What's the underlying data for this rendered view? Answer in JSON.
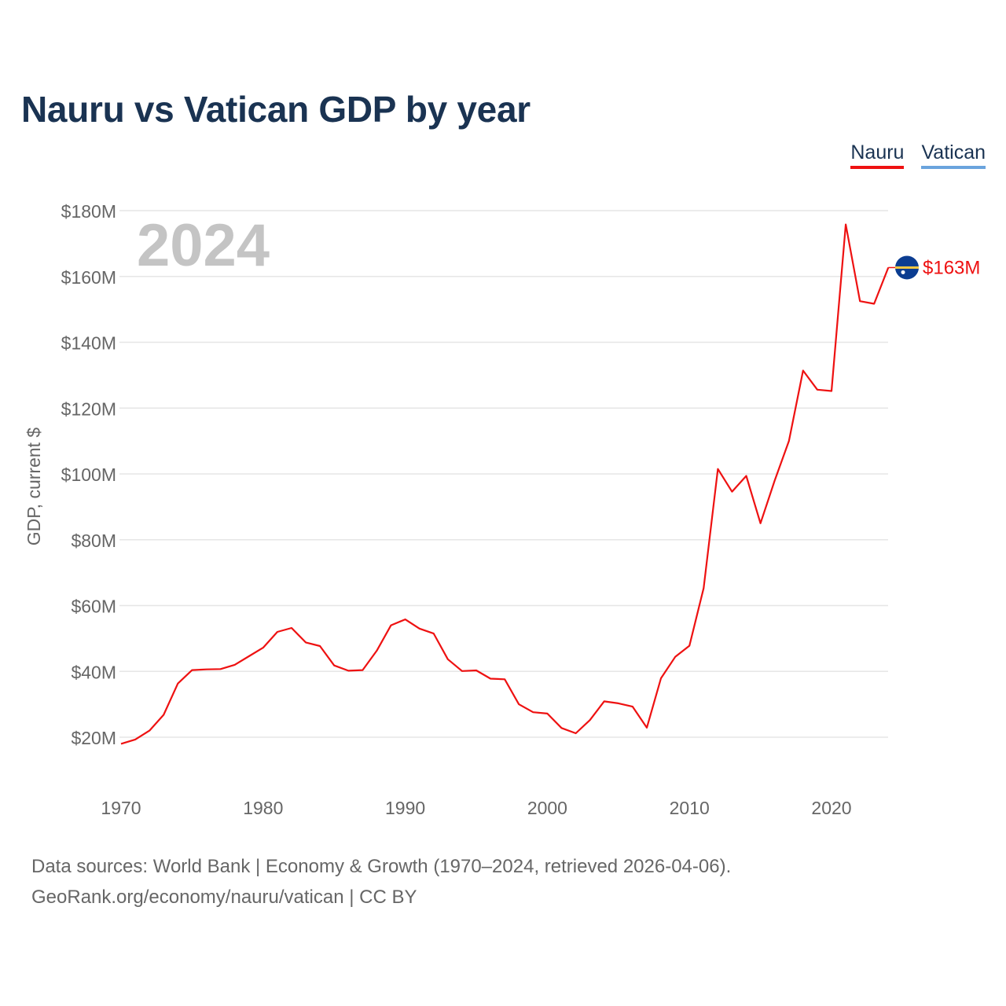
{
  "title": "Nauru vs Vatican GDP by year",
  "legend": {
    "items": [
      {
        "label": "Nauru",
        "color": "#ee1111"
      },
      {
        "label": "Vatican",
        "color": "#6aa4dd"
      }
    ]
  },
  "year_watermark": "2024",
  "end_label": "$163M",
  "footer": {
    "line1": "Data sources: World Bank | Economy & Growth (1970–2024, retrieved 2026-04-06).",
    "line2": "GeoRank.org/economy/nauru/vatican | CC BY"
  },
  "chart_data": {
    "type": "line",
    "title": "Nauru vs Vatican GDP by year",
    "xlabel": "",
    "ylabel": "GDP, current $",
    "xlim": [
      1970,
      2024
    ],
    "ylim": [
      10,
      185
    ],
    "x_ticks": [
      1970,
      1980,
      1990,
      2000,
      2010,
      2020
    ],
    "y_ticks": [
      20,
      40,
      60,
      80,
      100,
      120,
      140,
      160,
      180
    ],
    "y_tick_labels": [
      "$20M",
      "$40M",
      "$60M",
      "$80M",
      "$100M",
      "$120M",
      "$140M",
      "$160M",
      "$180M"
    ],
    "grid": true,
    "legend_position": "top-right",
    "series": [
      {
        "name": "Nauru",
        "color": "#ee1111",
        "x": [
          1970,
          1971,
          1972,
          1973,
          1974,
          1975,
          1976,
          1977,
          1978,
          1979,
          1980,
          1981,
          1982,
          1983,
          1984,
          1985,
          1986,
          1987,
          1988,
          1989,
          1990,
          1991,
          1992,
          1993,
          1994,
          1995,
          1996,
          1997,
          1998,
          1999,
          2000,
          2001,
          2002,
          2003,
          2004,
          2005,
          2006,
          2007,
          2008,
          2009,
          2010,
          2011,
          2012,
          2013,
          2014,
          2015,
          2016,
          2017,
          2018,
          2019,
          2020,
          2021,
          2022,
          2023,
          2024
        ],
        "values": [
          18,
          19.3,
          22,
          26.8,
          36.3,
          40.4,
          40.6,
          40.7,
          42,
          44.6,
          47.2,
          52,
          53.2,
          48.8,
          47.7,
          41.8,
          40.2,
          40.4,
          46.3,
          54,
          55.8,
          53,
          51.5,
          43.7,
          40.1,
          40.3,
          37.8,
          37.6,
          30,
          27.6,
          27.2,
          22.8,
          21.2,
          25.2,
          30.9,
          30.3,
          29.3,
          22.9,
          37.9,
          44.4,
          47.8,
          65.3,
          101.5,
          94.6,
          99.4,
          85,
          98,
          110,
          131.4,
          125.6,
          125.2,
          175.8,
          152.5,
          151.7,
          162.7
        ]
      },
      {
        "name": "Vatican",
        "color": "#6aa4dd",
        "x": [],
        "values": []
      }
    ]
  }
}
